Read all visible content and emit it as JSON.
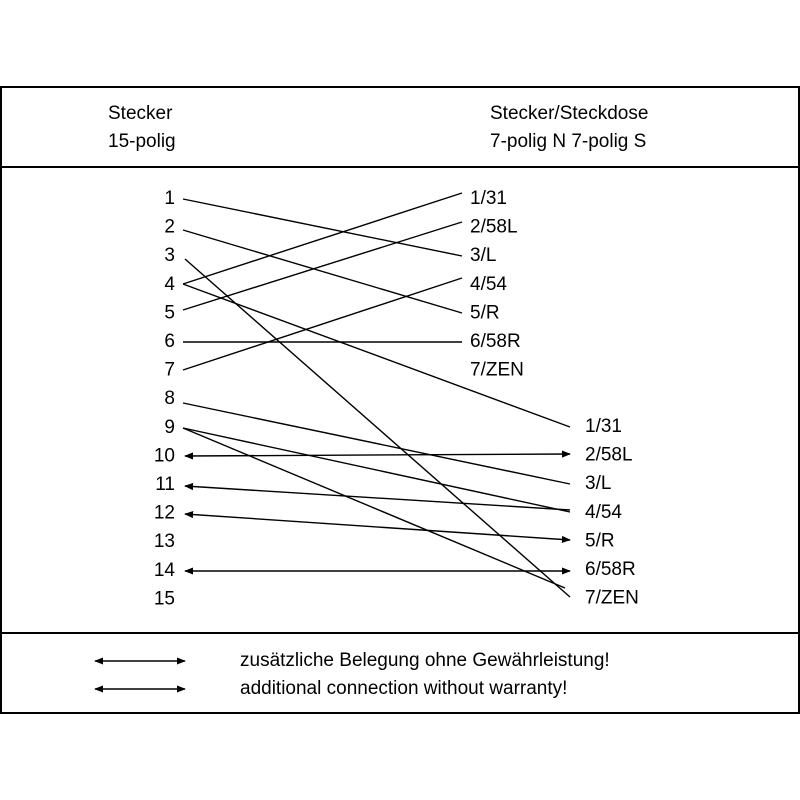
{
  "header": {
    "left": [
      "Stecker",
      "15-polig"
    ],
    "right": [
      "Stecker/Steckdose",
      "7-polig N 7-polig S"
    ]
  },
  "left_pins": [
    "1",
    "2",
    "3",
    "4",
    "5",
    "6",
    "7",
    "8",
    "9",
    "10",
    "11",
    "12",
    "13",
    "14",
    "15"
  ],
  "n_pins": [
    "1/31",
    "2/58L",
    "3/L",
    "4/54",
    "5/R",
    "6/58R",
    "7/ZEN"
  ],
  "s_pins": [
    "1/31",
    "2/58L",
    "3/L",
    "4/54",
    "5/R",
    "6/58R",
    "7/ZEN"
  ],
  "footer": [
    "zusätzliche Belegung ohne Gewährleistung!",
    "additional connection without warranty!"
  ]
}
